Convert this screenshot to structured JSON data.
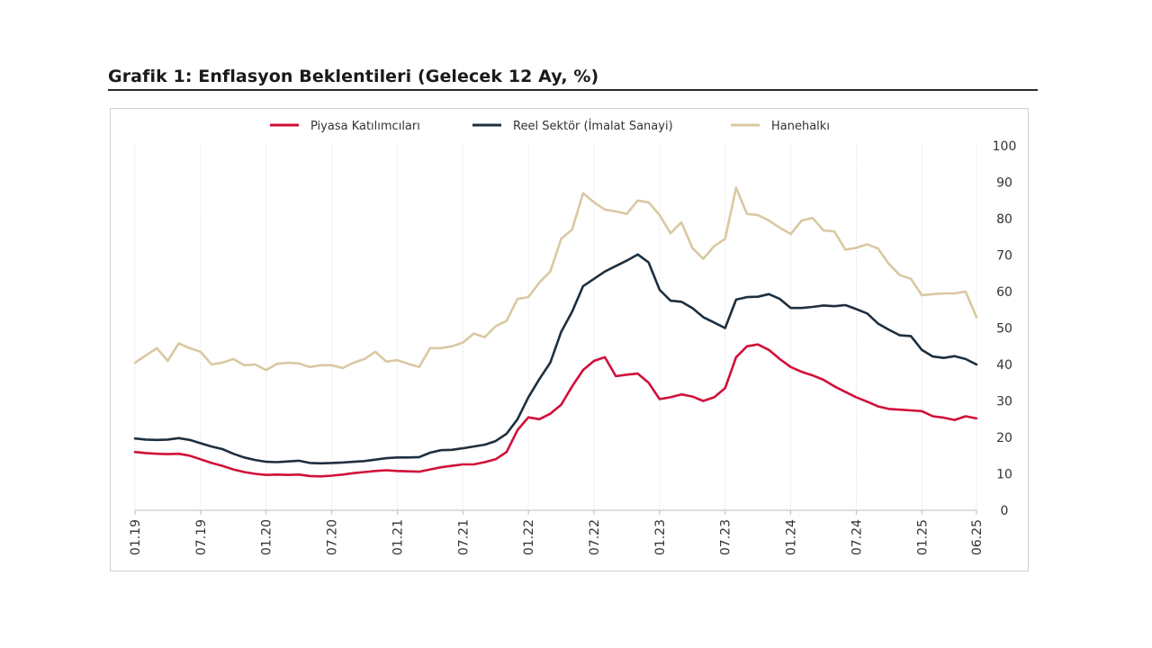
{
  "title": "Grafik 1: Enflasyon Beklentileri (Gelecek 12 Ay, %)",
  "chart_data": {
    "type": "line",
    "title": "Grafik 1: Enflasyon Beklentileri (Gelecek 12 Ay, %)",
    "xlabel": "",
    "ylabel": "",
    "ylim": [
      0,
      100
    ],
    "yticks": [
      0,
      10,
      20,
      30,
      40,
      50,
      60,
      70,
      80,
      90,
      100
    ],
    "x_tick_labels": [
      "01.19",
      "07.19",
      "01.20",
      "07.20",
      "01.21",
      "07.21",
      "01.22",
      "07.22",
      "01.23",
      "07.23",
      "01.24",
      "07.24",
      "01.25",
      "06.25"
    ],
    "x_tick_index": [
      0,
      6,
      12,
      18,
      24,
      30,
      36,
      42,
      48,
      54,
      60,
      66,
      72,
      77
    ],
    "x_start": "01.19",
    "x_end": "06.25",
    "grid": "vertical",
    "legend_position": "top",
    "series": [
      {
        "name": "Piyasa Katılımcıları",
        "color": "#d0103a",
        "values": [
          16.0,
          15.7,
          15.5,
          15.4,
          15.5,
          15.0,
          14.0,
          13.0,
          12.2,
          11.2,
          10.5,
          10.0,
          9.7,
          9.8,
          9.7,
          9.8,
          9.4,
          9.3,
          9.5,
          9.8,
          10.2,
          10.5,
          10.8,
          11.0,
          10.8,
          10.7,
          10.6,
          11.2,
          11.8,
          12.2,
          12.6,
          12.6,
          13.2,
          14.0,
          16.0,
          22.0,
          25.5,
          25.0,
          26.5,
          29.0,
          34.0,
          38.5,
          41.0,
          42.0,
          36.8,
          37.2,
          37.5,
          35.0,
          30.5,
          31.0,
          31.8,
          31.2,
          30.0,
          31.0,
          33.5,
          42.0,
          45.0,
          45.5,
          44.0,
          41.5,
          39.3,
          38.0,
          37.0,
          35.8,
          34.0,
          32.5,
          31.0,
          29.8,
          28.5,
          27.8,
          27.6,
          27.4,
          27.2,
          25.8,
          25.4,
          24.8,
          25.8,
          25.2
        ]
      },
      {
        "name": "Reel Sektör (İmalat Sanayi)",
        "color": "#1e2f3e",
        "values": [
          19.7,
          19.4,
          19.3,
          19.4,
          19.8,
          19.3,
          18.4,
          17.5,
          16.8,
          15.5,
          14.5,
          13.8,
          13.3,
          13.2,
          13.4,
          13.6,
          13.0,
          12.9,
          13.0,
          13.1,
          13.3,
          13.5,
          13.9,
          14.3,
          14.5,
          14.5,
          14.6,
          15.8,
          16.5,
          16.6,
          17.0,
          17.5,
          18.0,
          19.0,
          21.0,
          25.0,
          31.0,
          36.0,
          40.5,
          49.0,
          54.5,
          61.5,
          63.5,
          65.5,
          67.0,
          68.5,
          70.2,
          68.0,
          60.5,
          57.5,
          57.2,
          55.5,
          53.0,
          51.5,
          50.0,
          57.8,
          58.5,
          58.6,
          59.3,
          58.0,
          55.5,
          55.5,
          55.8,
          56.2,
          56.0,
          56.3,
          55.2,
          54.0,
          51.2,
          49.5,
          48.0,
          47.8,
          44.0,
          42.2,
          41.8,
          42.3,
          41.5,
          40.0
        ]
      },
      {
        "name": "Hanehalkı",
        "color": "#d9c8a2",
        "values": [
          40.5,
          42.5,
          44.5,
          41.0,
          45.8,
          44.5,
          43.5,
          40.0,
          40.5,
          41.5,
          39.8,
          40.0,
          38.5,
          40.2,
          40.5,
          40.3,
          39.3,
          39.8,
          39.8,
          39.0,
          40.5,
          41.5,
          43.5,
          40.8,
          41.2,
          40.2,
          39.3,
          44.5,
          44.5,
          45.0,
          46.0,
          48.5,
          47.5,
          50.5,
          52.0,
          58.0,
          58.5,
          62.5,
          65.5,
          74.5,
          77.0,
          87.0,
          84.5,
          82.5,
          82.0,
          81.3,
          85.0,
          84.5,
          81.0,
          76.0,
          79.0,
          72.0,
          69.0,
          72.5,
          74.5,
          88.5,
          81.3,
          81.0,
          79.5,
          77.5,
          75.8,
          79.5,
          80.2,
          76.8,
          76.5,
          71.5,
          72.0,
          73.0,
          71.8,
          67.5,
          64.5,
          63.5,
          59.0,
          59.3,
          59.5,
          59.5,
          60.0,
          53.0
        ]
      }
    ]
  }
}
